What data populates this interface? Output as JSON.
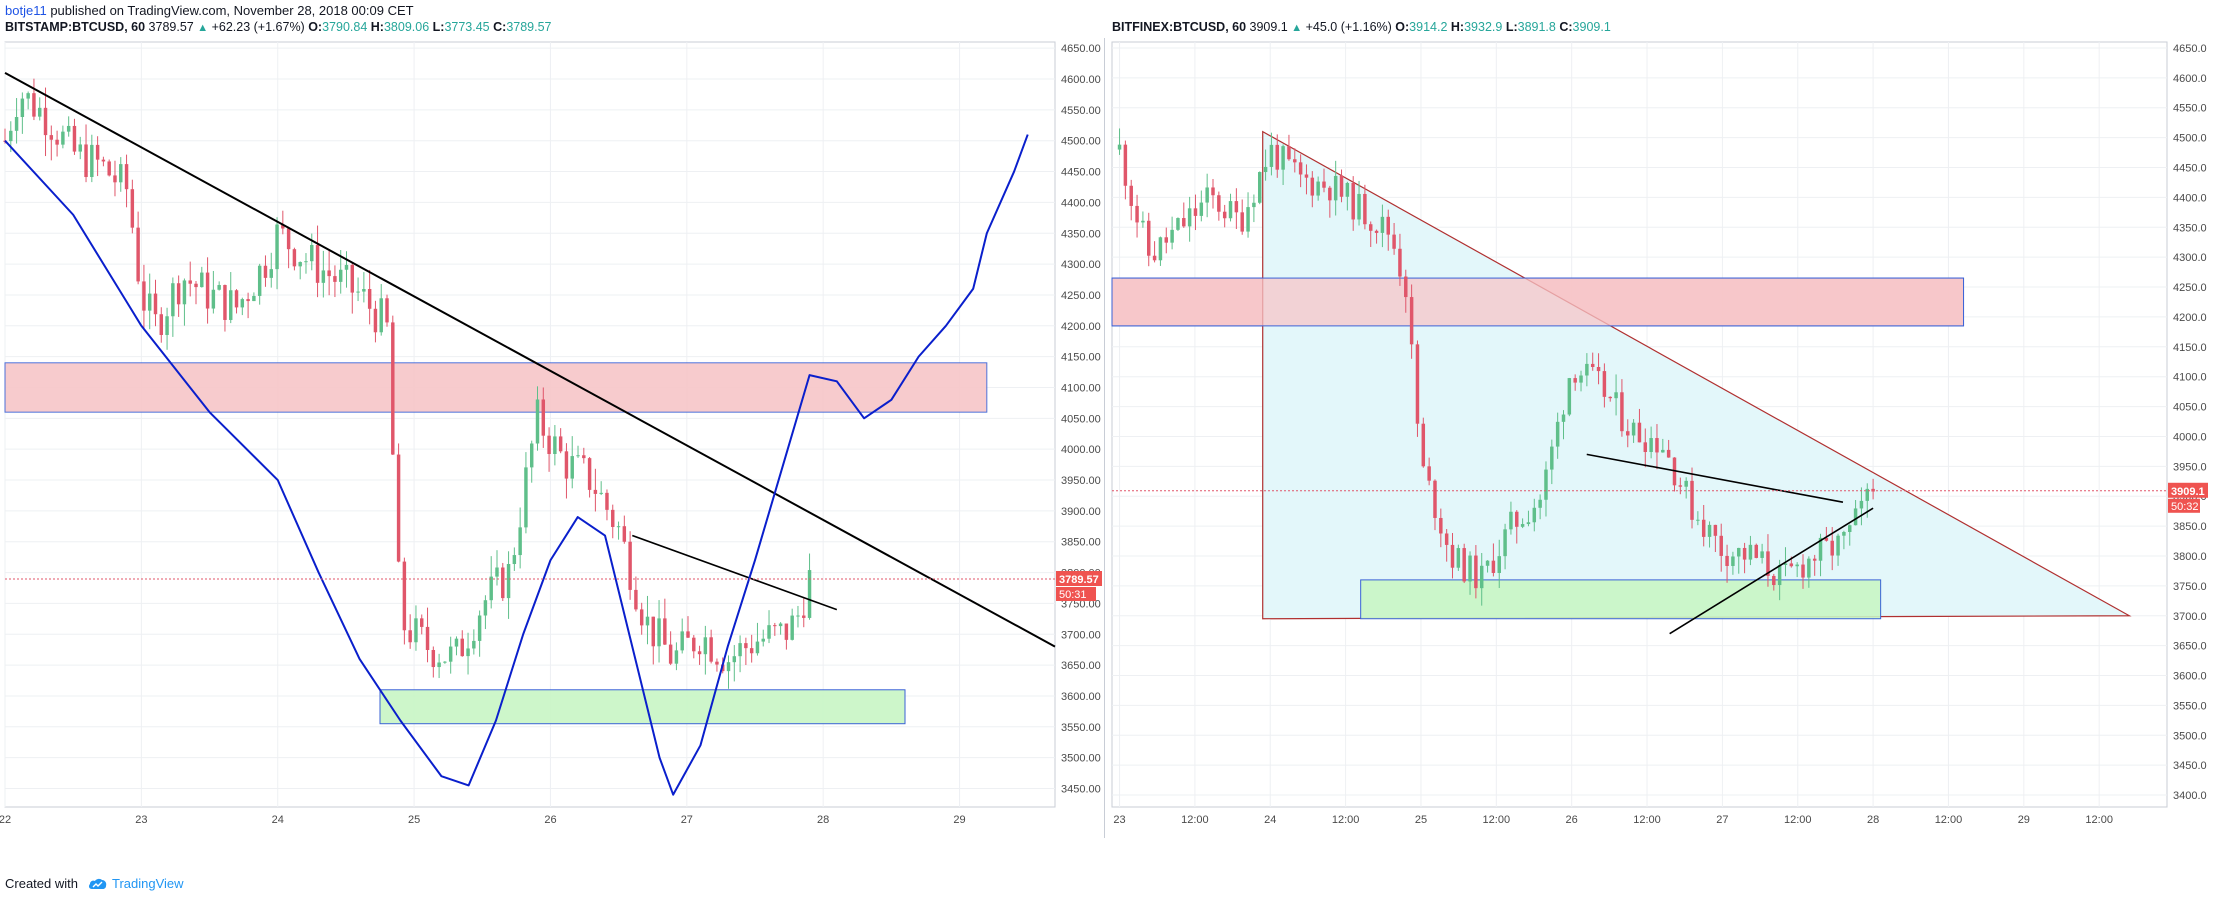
{
  "header": {
    "author": "botje11",
    "published_text": "published on TradingView.com, November 28, 2018 00:09 CET"
  },
  "left_chart": {
    "symbol": "BITSTAMP:BTCUSD, 60",
    "last": "3789.57",
    "change": "+62.23 (+1.67%)",
    "o_label": "O:",
    "o_value": "3790.84",
    "h_label": "H:",
    "h_value": "3809.06",
    "l_label": "L:",
    "l_value": "3773.45",
    "c_label": "C:",
    "c_value": "3789.57",
    "price_tag": "3789.57",
    "countdown": "50:31"
  },
  "right_chart": {
    "symbol": "BITFINEX:BTCUSD, 60",
    "last": "3909.1",
    "change": "+45.0 (+1.16%)",
    "o_label": "O:",
    "o_value": "3914.2",
    "h_label": "H:",
    "h_value": "3932.9",
    "l_label": "L:",
    "l_value": "3891.8",
    "c_label": "C:",
    "c_value": "3909.1",
    "price_tag": "3909.1",
    "countdown": "50:32"
  },
  "footer": {
    "created_with": "Created with",
    "brand": "TradingView"
  },
  "colors": {
    "up": "#26a69a",
    "down": "#ef5350",
    "up_body": "#5fbf8a",
    "down_body": "#e0566a",
    "resistance_zone": "#f7c6c8",
    "support_zone": "#c8f5c4",
    "triangle_fill": "#e3f7fa",
    "blue_curve": "#0a1fcc"
  },
  "chart_data": [
    {
      "type": "candlestick",
      "title": "BITSTAMP:BTCUSD, 60",
      "x_tick_labels": [
        "22",
        "23",
        "24",
        "25",
        "26",
        "27",
        "28",
        "29"
      ],
      "y_tick_labels": [
        "4650.00",
        "4600.00",
        "4550.00",
        "4500.00",
        "4450.00",
        "4400.00",
        "4350.00",
        "4300.00",
        "4250.00",
        "4200.00",
        "4150.00",
        "4100.00",
        "4050.00",
        "4000.00",
        "3950.00",
        "3900.00",
        "3850.00",
        "3800.00",
        "3750.00",
        "3700.00",
        "3650.00",
        "3600.00",
        "3550.00",
        "3500.00",
        "3450.00"
      ],
      "ylim": [
        3420,
        4660
      ],
      "y_ticks": [
        4650,
        4600,
        4550,
        4500,
        4450,
        4400,
        4350,
        4300,
        4250,
        4200,
        4150,
        4100,
        4050,
        4000,
        3950,
        3900,
        3850,
        3800,
        3750,
        3700,
        3650,
        3600,
        3550,
        3500,
        3450
      ],
      "last_price": 3789.57,
      "resistance_zone": [
        4060,
        4140
      ],
      "support_zone": [
        3555,
        3610
      ],
      "price_path": [
        [
          22.0,
          4500
        ],
        [
          22.1,
          4580
        ],
        [
          22.3,
          4540
        ],
        [
          22.5,
          4480
        ],
        [
          22.7,
          4460
        ],
        [
          22.9,
          4420
        ],
        [
          23.0,
          4250
        ],
        [
          23.1,
          4200
        ],
        [
          23.3,
          4280
        ],
        [
          23.5,
          4250
        ],
        [
          23.7,
          4230
        ],
        [
          23.9,
          4300
        ],
        [
          24.0,
          4350
        ],
        [
          24.2,
          4310
        ],
        [
          24.4,
          4280
        ],
        [
          24.6,
          4250
        ],
        [
          24.8,
          4200
        ],
        [
          24.9,
          3720
        ],
        [
          25.1,
          3680
        ],
        [
          25.3,
          3660
        ],
        [
          25.5,
          3750
        ],
        [
          25.7,
          3800
        ],
        [
          25.9,
          4050
        ],
        [
          26.1,
          3980
        ],
        [
          26.3,
          3950
        ],
        [
          26.5,
          3870
        ],
        [
          26.7,
          3720
        ],
        [
          26.9,
          3660
        ],
        [
          27.1,
          3700
        ],
        [
          27.3,
          3660
        ],
        [
          27.5,
          3690
        ],
        [
          27.7,
          3700
        ],
        [
          27.8,
          3720
        ],
        [
          27.9,
          3790
        ]
      ],
      "blue_curve": [
        [
          22.0,
          4500
        ],
        [
          22.5,
          4380
        ],
        [
          23.0,
          4200
        ],
        [
          23.5,
          4060
        ],
        [
          24.0,
          3950
        ],
        [
          24.3,
          3800
        ],
        [
          24.6,
          3660
        ],
        [
          24.9,
          3560
        ],
        [
          25.2,
          3470
        ],
        [
          25.4,
          3455
        ],
        [
          25.6,
          3560
        ],
        [
          25.8,
          3700
        ],
        [
          26.0,
          3820
        ],
        [
          26.2,
          3890
        ],
        [
          26.4,
          3860
        ],
        [
          26.6,
          3680
        ],
        [
          26.8,
          3500
        ],
        [
          26.9,
          3440
        ],
        [
          27.1,
          3520
        ],
        [
          27.3,
          3680
        ],
        [
          27.5,
          3820
        ],
        [
          27.7,
          3970
        ],
        [
          27.9,
          4120
        ],
        [
          28.1,
          4110
        ],
        [
          28.3,
          4050
        ],
        [
          28.5,
          4080
        ],
        [
          28.7,
          4150
        ],
        [
          28.9,
          4200
        ],
        [
          29.1,
          4260
        ],
        [
          29.2,
          4350
        ],
        [
          29.4,
          4450
        ],
        [
          29.5,
          4510
        ]
      ]
    },
    {
      "type": "candlestick",
      "title": "BITFINEX:BTCUSD, 60",
      "x_tick_labels": [
        "23",
        "12:00",
        "24",
        "12:00",
        "25",
        "12:00",
        "26",
        "12:00",
        "27",
        "12:00",
        "28",
        "12:00",
        "29",
        "12:00"
      ],
      "y_tick_labels": [
        "4650.0",
        "4600.0",
        "4550.0",
        "4500.0",
        "4450.0",
        "4400.0",
        "4350.0",
        "4300.0",
        "4250.0",
        "4200.0",
        "4150.0",
        "4100.0",
        "4050.0",
        "4000.0",
        "3950.0",
        "3900.0",
        "3850.0",
        "3800.0",
        "3750.0",
        "3700.0",
        "3650.0",
        "3600.0",
        "3550.0",
        "3500.0",
        "3450.0",
        "3400.0"
      ],
      "ylim": [
        3380,
        4660
      ],
      "y_ticks": [
        4650,
        4600,
        4550,
        4500,
        4450,
        4400,
        4350,
        4300,
        4250,
        4200,
        4150,
        4100,
        4050,
        4000,
        3950,
        3900,
        3850,
        3800,
        3750,
        3700,
        3650,
        3600,
        3550,
        3500,
        3450,
        3400
      ],
      "last_price": 3909.1,
      "resistance_zone": [
        4185,
        4265
      ],
      "support_zone": [
        3695,
        3760
      ],
      "price_path": [
        [
          23.0,
          4480
        ],
        [
          23.1,
          4380
        ],
        [
          23.2,
          4300
        ],
        [
          23.4,
          4350
        ],
        [
          23.6,
          4400
        ],
        [
          23.8,
          4360
        ],
        [
          24.0,
          4480
        ],
        [
          24.2,
          4430
        ],
        [
          24.4,
          4420
        ],
        [
          24.6,
          4380
        ],
        [
          24.8,
          4340
        ],
        [
          24.9,
          4250
        ],
        [
          25.0,
          3950
        ],
        [
          25.1,
          3880
        ],
        [
          25.2,
          3800
        ],
        [
          25.4,
          3760
        ],
        [
          25.6,
          3850
        ],
        [
          25.8,
          3900
        ],
        [
          26.0,
          4120
        ],
        [
          26.2,
          4080
        ],
        [
          26.4,
          4010
        ],
        [
          26.6,
          3990
        ],
        [
          26.8,
          3880
        ],
        [
          27.0,
          3810
        ],
        [
          27.2,
          3800
        ],
        [
          27.4,
          3760
        ],
        [
          27.6,
          3800
        ],
        [
          27.8,
          3820
        ],
        [
          28.0,
          3910
        ]
      ]
    }
  ]
}
